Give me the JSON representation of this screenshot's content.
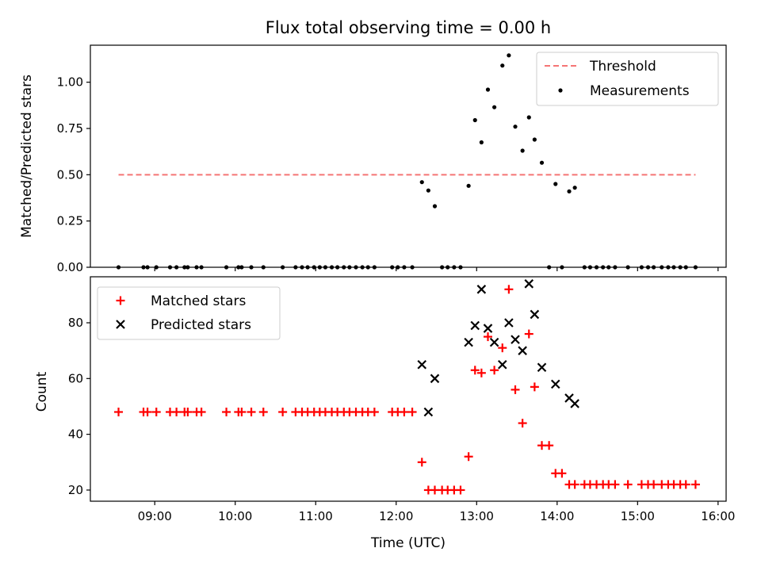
{
  "chart_data": {
    "title": "Flux total observing time = 0.00 h",
    "xlabel": "Time (UTC)",
    "xlim_hours": [
      8.2,
      16.1
    ],
    "x_ticks": [
      9,
      10,
      11,
      12,
      13,
      14,
      15,
      16
    ],
    "x_tick_labels": [
      "09:00",
      "10:00",
      "11:00",
      "12:00",
      "13:00",
      "14:00",
      "15:00",
      "16:00"
    ],
    "panels": [
      {
        "type": "scatter",
        "ylabel": "Matched/Predicted stars",
        "ylim": [
          0,
          1.2
        ],
        "y_ticks": [
          0,
          0.25,
          0.5,
          0.75,
          1.0
        ],
        "y_tick_labels": [
          "0.00",
          "0.25",
          "0.50",
          "0.75",
          "1.00"
        ],
        "legend_position": "upper right",
        "legend": {
          "threshold_label": "Threshold",
          "measurements_label": "Measurements"
        },
        "threshold": {
          "value": 0.5,
          "x_range": [
            8.55,
            15.72
          ],
          "color": "#f57575"
        },
        "series": [
          {
            "name": "Measurements",
            "color": "#000000",
            "marker": "dot",
            "x": [
              8.55,
              8.86,
              8.91,
              9.02,
              9.19,
              9.27,
              9.37,
              9.41,
              9.52,
              9.58,
              9.89,
              10.04,
              10.08,
              10.2,
              10.35,
              10.59,
              10.75,
              10.83,
              10.9,
              10.98,
              11.05,
              11.12,
              11.2,
              11.27,
              11.35,
              11.42,
              11.5,
              11.58,
              11.65,
              11.73,
              11.95,
              12.02,
              12.1,
              12.2,
              12.32,
              12.4,
              12.48,
              12.57,
              12.64,
              12.72,
              12.8,
              12.9,
              12.98,
              13.06,
              13.14,
              13.22,
              13.32,
              13.4,
              13.48,
              13.57,
              13.65,
              13.72,
              13.81,
              13.9,
              13.98,
              14.06,
              14.15,
              14.22,
              14.34,
              14.41,
              14.49,
              14.57,
              14.64,
              14.72,
              14.88,
              15.05,
              15.13,
              15.2,
              15.3,
              15.38,
              15.45,
              15.53,
              15.6,
              15.72
            ],
            "y": [
              0,
              0,
              0,
              0,
              0,
              0,
              0,
              0,
              0,
              0,
              0,
              0,
              0,
              0,
              0,
              0,
              0,
              0,
              0,
              0,
              0,
              0,
              0,
              0,
              0,
              0,
              0,
              0,
              0,
              0,
              0,
              0,
              0,
              0,
              0.46,
              0.415,
              0.33,
              0,
              0,
              0,
              0,
              0.44,
              0.795,
              0.675,
              0.96,
              0.865,
              1.09,
              1.145,
              0.76,
              0.63,
              0.81,
              0.69,
              0.565,
              0,
              0.45,
              0,
              0.41,
              0.43,
              0,
              0,
              0,
              0,
              0,
              0,
              0,
              0,
              0,
              0,
              0,
              0,
              0,
              0,
              0,
              0
            ]
          }
        ]
      },
      {
        "type": "scatter",
        "ylabel": "Count",
        "ylim": [
          16,
          96.5
        ],
        "y_ticks": [
          20,
          40,
          60,
          80
        ],
        "y_tick_labels": [
          "20",
          "40",
          "60",
          "80"
        ],
        "legend_position": "upper left",
        "series": [
          {
            "name": "Matched stars",
            "color": "#ff0000",
            "marker": "plus",
            "x": [
              8.55,
              8.86,
              8.91,
              9.02,
              9.19,
              9.27,
              9.37,
              9.41,
              9.52,
              9.58,
              9.89,
              10.04,
              10.08,
              10.2,
              10.35,
              10.59,
              10.75,
              10.83,
              10.9,
              10.98,
              11.05,
              11.12,
              11.2,
              11.27,
              11.35,
              11.42,
              11.5,
              11.58,
              11.65,
              11.73,
              11.95,
              12.02,
              12.1,
              12.2,
              12.32,
              12.4,
              12.48,
              12.57,
              12.64,
              12.72,
              12.8,
              12.9,
              12.98,
              13.06,
              13.14,
              13.22,
              13.32,
              13.4,
              13.48,
              13.57,
              13.65,
              13.72,
              13.81,
              13.9,
              13.98,
              14.06,
              14.15,
              14.22,
              14.34,
              14.41,
              14.49,
              14.57,
              14.64,
              14.72,
              14.88,
              15.05,
              15.13,
              15.2,
              15.3,
              15.38,
              15.45,
              15.53,
              15.6,
              15.72
            ],
            "y": [
              48,
              48,
              48,
              48,
              48,
              48,
              48,
              48,
              48,
              48,
              48,
              48,
              48,
              48,
              48,
              48,
              48,
              48,
              48,
              48,
              48,
              48,
              48,
              48,
              48,
              48,
              48,
              48,
              48,
              48,
              48,
              48,
              48,
              48,
              30,
              20,
              20,
              20,
              20,
              20,
              20,
              32,
              63,
              62,
              75,
              63,
              71,
              92,
              56,
              44,
              76,
              57,
              36,
              36,
              26,
              26,
              22,
              22,
              22,
              22,
              22,
              22,
              22,
              22,
              22,
              22,
              22,
              22,
              22,
              22,
              22,
              22,
              22,
              22
            ]
          },
          {
            "name": "Predicted stars",
            "color": "#000000",
            "marker": "x",
            "x": [
              12.32,
              12.4,
              12.48,
              12.9,
              12.98,
              13.06,
              13.14,
              13.22,
              13.32,
              13.4,
              13.48,
              13.57,
              13.65,
              13.72,
              13.81,
              13.98,
              14.15,
              14.22
            ],
            "y": [
              65,
              48,
              60,
              73,
              79,
              92,
              78,
              73,
              65,
              80,
              74,
              70,
              94,
              83,
              64,
              58,
              53,
              51
            ]
          }
        ]
      }
    ]
  }
}
